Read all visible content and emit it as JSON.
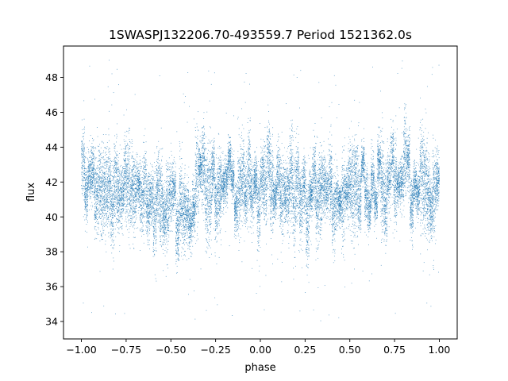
{
  "chart_data": {
    "type": "scatter",
    "title": "1SWASPJ132206.70-493559.7 Period 1521362.0s",
    "xlabel": "phase",
    "ylabel": "flux",
    "xlim": [
      -1.1,
      1.1
    ],
    "ylim": [
      33.0,
      49.8
    ],
    "xticks": [
      -1.0,
      -0.75,
      -0.5,
      -0.25,
      0.0,
      0.25,
      0.5,
      0.75,
      1.0
    ],
    "xtick_labels": [
      "−1.00",
      "−0.75",
      "−0.50",
      "−0.25",
      "0.00",
      "0.25",
      "0.50",
      "0.75",
      "1.00"
    ],
    "yticks": [
      34,
      36,
      38,
      40,
      42,
      44,
      46,
      48
    ],
    "ytick_labels": [
      "34",
      "36",
      "38",
      "40",
      "42",
      "44",
      "46",
      "48"
    ],
    "grid": false,
    "marker_color": "#1f77b4",
    "series": [
      {
        "x_range": [
          -1.0,
          1.0
        ],
        "description_of_trend": [
          {
            "x": -1.0,
            "y": 41.8
          },
          {
            "x": -0.75,
            "y": 41.6
          },
          {
            "x": -0.5,
            "y": 41.0
          },
          {
            "x": -0.25,
            "y": 41.6
          },
          {
            "x": 0.0,
            "y": 41.8
          },
          {
            "x": 0.25,
            "y": 41.5
          },
          {
            "x": 0.5,
            "y": 41.0
          },
          {
            "x": 0.75,
            "y": 41.5
          },
          {
            "x": 1.0,
            "y": 41.8
          }
        ]
      }
    ]
  }
}
